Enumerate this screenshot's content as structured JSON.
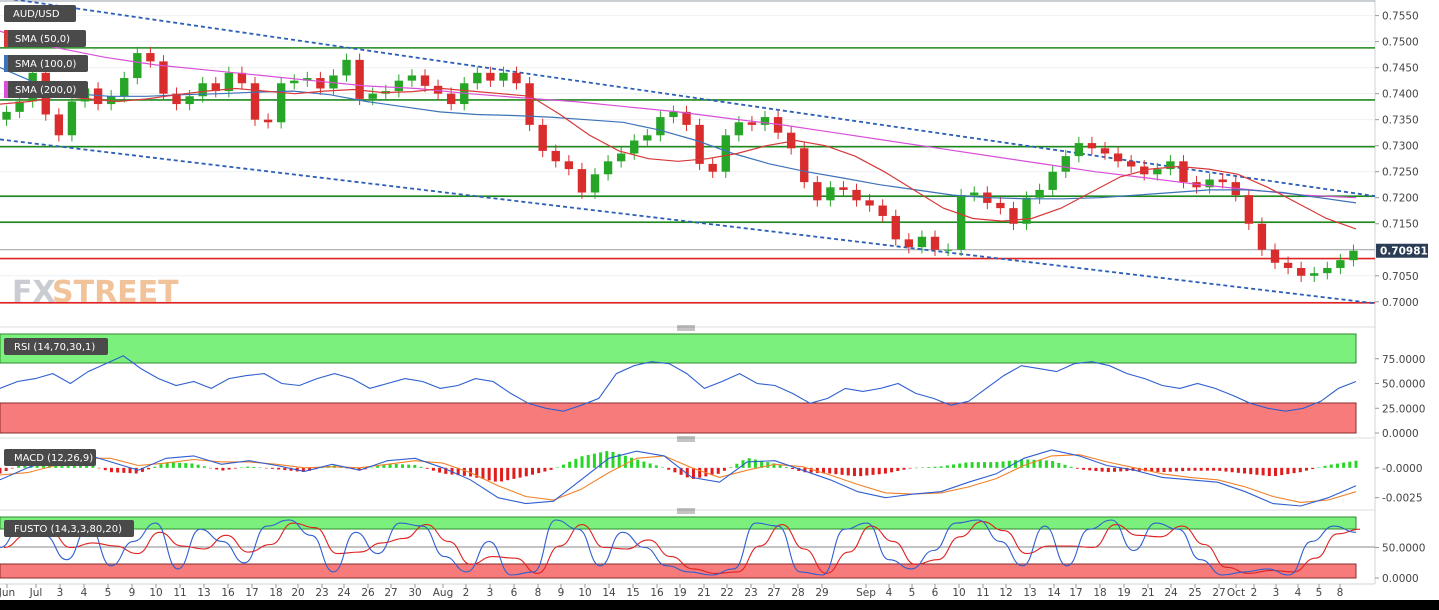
{
  "chart_data": {
    "type": "candlestick",
    "instrument": "AUD/USD",
    "current_price": "0.70981",
    "indicators": {
      "sma50": {
        "label": "SMA (50,0)",
        "color": "#d93838"
      },
      "sma100": {
        "label": "SMA (100,0)",
        "color": "#3d73b8"
      },
      "sma200": {
        "label": "SMA (200,0)",
        "color": "#d94fd9"
      }
    },
    "price_axis": {
      "range": [
        0.6965,
        0.758
      ],
      "ticks": [
        0.755,
        0.75,
        0.745,
        0.74,
        0.735,
        0.73,
        0.725,
        0.72,
        0.715,
        0.705,
        0.7
      ],
      "tick_labels": [
        "0.7550",
        "0.7500",
        "0.7450",
        "0.7400",
        "0.7350",
        "0.7300",
        "0.7250",
        "0.7200",
        "0.7150",
        "0.7050",
        "0.7000"
      ]
    },
    "horizontal_levels": {
      "green": [
        0.7488,
        0.7388,
        0.7298,
        0.7203,
        0.7153
      ],
      "red": [
        0.7083,
        0.6998
      ],
      "gray": [
        0.7578,
        0.71
      ]
    },
    "trendlines": [
      {
        "from": [
          0,
          0.7585
        ],
        "to": [
          1375,
          0.7203
        ]
      },
      {
        "from": [
          0,
          0.7312
        ],
        "to": [
          1375,
          0.6997
        ]
      }
    ],
    "closes": [
      0.7365,
      0.7385,
      0.744,
      0.736,
      0.732,
      0.7385,
      0.741,
      0.738,
      0.7395,
      0.743,
      0.7478,
      0.7462,
      0.74,
      0.738,
      0.7395,
      0.742,
      0.7405,
      0.744,
      0.742,
      0.735,
      0.7345,
      0.742,
      0.7425,
      0.743,
      0.741,
      0.7435,
      0.7465,
      0.739,
      0.74,
      0.7405,
      0.7425,
      0.7435,
      0.7415,
      0.74,
      0.738,
      0.742,
      0.744,
      0.7425,
      0.744,
      0.742,
      0.734,
      0.729,
      0.727,
      0.7255,
      0.721,
      0.7245,
      0.727,
      0.7285,
      0.731,
      0.732,
      0.7355,
      0.7365,
      0.734,
      0.7265,
      0.725,
      0.732,
      0.7345,
      0.734,
      0.7355,
      0.7325,
      0.7295,
      0.723,
      0.7195,
      0.722,
      0.7215,
      0.7195,
      0.7185,
      0.7165,
      0.712,
      0.7105,
      0.7125,
      0.71,
      0.71,
      0.7205,
      0.721,
      0.719,
      0.718,
      0.715,
      0.72,
      0.7215,
      0.725,
      0.728,
      0.7305,
      0.7295,
      0.7285,
      0.727,
      0.726,
      0.7245,
      0.7255,
      0.727,
      0.723,
      0.722,
      0.7235,
      0.723,
      0.7205,
      0.715,
      0.71,
      0.7075,
      0.7065,
      0.705,
      0.7055,
      0.7065,
      0.708,
      0.7098
    ],
    "sma50_values": [
      0.738,
      0.7385,
      0.7395,
      0.739,
      0.7385,
      0.739,
      0.7398,
      0.7405,
      0.741,
      0.7405,
      0.74,
      0.7405,
      0.7408,
      0.7402,
      0.7404,
      0.741,
      0.7405,
      0.74,
      0.7395,
      0.736,
      0.732,
      0.729,
      0.7275,
      0.727,
      0.7275,
      0.7285,
      0.73,
      0.731,
      0.73,
      0.728,
      0.725,
      0.7215,
      0.718,
      0.716,
      0.7155,
      0.716,
      0.718,
      0.721,
      0.724,
      0.7255,
      0.726,
      0.7255,
      0.7245,
      0.722,
      0.719,
      0.716,
      0.714
    ],
    "sma100_values": [
      0.745,
      0.742,
      0.74,
      0.7395,
      0.7395,
      0.7398,
      0.74,
      0.7403,
      0.7405,
      0.7398,
      0.7385,
      0.7375,
      0.7365,
      0.736,
      0.7358,
      0.7355,
      0.735,
      0.7345,
      0.733,
      0.731,
      0.7285,
      0.7265,
      0.725,
      0.7238,
      0.7225,
      0.7215,
      0.7205,
      0.72,
      0.7198,
      0.7198,
      0.72,
      0.7205,
      0.721,
      0.7215,
      0.7215,
      0.721,
      0.72,
      0.719
    ],
    "sma200_values": [
      0.752,
      0.749,
      0.747,
      0.7455,
      0.7445,
      0.7435,
      0.7425,
      0.7415,
      0.741,
      0.74,
      0.7392,
      0.7385,
      0.7375,
      0.7365,
      0.7352,
      0.734,
      0.7325,
      0.731,
      0.7295,
      0.728,
      0.7265,
      0.725,
      0.7238,
      0.7225,
      0.7215,
      0.7205,
      0.72
    ],
    "rsi": {
      "label": "RSI (14,70,30,1)",
      "levels": [
        70,
        30
      ],
      "ticks": [
        75,
        50,
        25,
        0
      ],
      "tick_labels": [
        "75.0000",
        "50.0000",
        "25.0000",
        "0.0000"
      ],
      "values": [
        45,
        52,
        55,
        60,
        50,
        62,
        70,
        78,
        65,
        55,
        48,
        52,
        45,
        55,
        58,
        60,
        50,
        48,
        55,
        60,
        55,
        45,
        50,
        55,
        52,
        45,
        48,
        55,
        52,
        40,
        30,
        25,
        22,
        28,
        35,
        60,
        68,
        72,
        70,
        60,
        45,
        52,
        60,
        50,
        48,
        40,
        30,
        35,
        45,
        42,
        45,
        50,
        40,
        35,
        28,
        32,
        45,
        58,
        68,
        65,
        62,
        70,
        72,
        68,
        60,
        55,
        48,
        45,
        50,
        45,
        38,
        30,
        25,
        22,
        25,
        32,
        45,
        52
      ]
    },
    "macd": {
      "label": "MACD (12,26,9)",
      "ticks": [
        0.0,
        -0.0025
      ],
      "tick_labels": [
        "-0.0000",
        "-0.0025"
      ],
      "range": [
        -0.0032,
        0.002
      ],
      "macd_line": [
        -0.001,
        0.0,
        0.0008,
        0.0012,
        0.0005,
        -0.0002,
        0.0008,
        0.001,
        0.0003,
        0.0006,
        0.0002,
        -0.0003,
        0.0003,
        -0.0002,
        0.0006,
        0.0008,
        0.0,
        -0.001,
        -0.0025,
        -0.003,
        -0.0028,
        -0.001,
        0.0008,
        0.0014,
        0.001,
        -0.0008,
        -0.0012,
        0.0005,
        0.0006,
        -0.0002,
        -0.001,
        -0.002,
        -0.0025,
        -0.0022,
        -0.002,
        -0.0012,
        -0.0005,
        0.0008,
        0.0015,
        0.001,
        0.0002,
        -0.0002,
        -0.0008,
        -0.001,
        -0.0012,
        -0.002,
        -0.003,
        -0.0032,
        -0.0025,
        -0.0015
      ],
      "signal_line": [
        -0.0006,
        -0.0004,
        0.0002,
        0.0008,
        0.0008,
        0.0002,
        0.0004,
        0.0007,
        0.0005,
        0.0005,
        0.0003,
        0.0,
        0.0001,
        0.0,
        0.0003,
        0.0006,
        0.0004,
        -0.0004,
        -0.0015,
        -0.0024,
        -0.0027,
        -0.0018,
        -0.0004,
        0.0008,
        0.001,
        0.0,
        -0.0008,
        -0.0002,
        0.0003,
        0.0001,
        -0.0006,
        -0.0014,
        -0.0021,
        -0.0022,
        -0.0021,
        -0.0016,
        -0.0009,
        0.0002,
        0.001,
        0.0011,
        0.0005,
        0.0,
        -0.0005,
        -0.0008,
        -0.001,
        -0.0016,
        -0.0024,
        -0.0029,
        -0.0027,
        -0.002
      ]
    },
    "fusto": {
      "label": "FUSTO (14,3,3,80,20)",
      "levels": [
        80,
        20
      ],
      "ticks": [
        50,
        0
      ],
      "tick_labels": [
        "50.0000",
        "0.0000"
      ],
      "k_values": [
        50,
        90,
        70,
        30,
        85,
        20,
        60,
        90,
        15,
        80,
        60,
        25,
        85,
        95,
        70,
        10,
        75,
        40,
        90,
        85,
        35,
        10,
        60,
        5,
        10,
        95,
        80,
        20,
        75,
        50,
        20,
        10,
        5,
        15,
        90,
        85,
        10,
        5,
        80,
        90,
        30,
        15,
        45,
        90,
        95,
        60,
        20,
        85,
        20,
        80,
        95,
        45,
        90,
        80,
        30,
        5,
        10,
        15,
        5,
        60,
        85,
        75
      ]
    },
    "x_axis": {
      "labels": [
        {
          "text": "Jun",
          "x": 7
        },
        {
          "text": "Jul",
          "x": 36
        },
        {
          "text": "3",
          "x": 60
        },
        {
          "text": "4",
          "x": 84
        },
        {
          "text": "5",
          "x": 108
        },
        {
          "text": "9",
          "x": 132
        },
        {
          "text": "10",
          "x": 156
        },
        {
          "text": "11",
          "x": 180
        },
        {
          "text": "13",
          "x": 204
        },
        {
          "text": "16",
          "x": 228
        },
        {
          "text": "17",
          "x": 252
        },
        {
          "text": "18",
          "x": 276
        },
        {
          "text": "20",
          "x": 298
        },
        {
          "text": "23",
          "x": 322
        },
        {
          "text": "24",
          "x": 344
        },
        {
          "text": "26",
          "x": 368
        },
        {
          "text": "27",
          "x": 391
        },
        {
          "text": "30",
          "x": 415
        },
        {
          "text": "Aug",
          "x": 443
        },
        {
          "text": "2",
          "x": 466
        },
        {
          "text": "3",
          "x": 490
        },
        {
          "text": "6",
          "x": 514
        },
        {
          "text": "8",
          "x": 538
        },
        {
          "text": "9",
          "x": 561
        },
        {
          "text": "10",
          "x": 585
        },
        {
          "text": "14",
          "x": 609
        },
        {
          "text": "15",
          "x": 633
        },
        {
          "text": "16",
          "x": 657
        },
        {
          "text": "19",
          "x": 680
        },
        {
          "text": "21",
          "x": 704
        },
        {
          "text": "22",
          "x": 727
        },
        {
          "text": "23",
          "x": 751
        },
        {
          "text": "27",
          "x": 774
        },
        {
          "text": "28",
          "x": 798
        },
        {
          "text": "29",
          "x": 822
        },
        {
          "text": "Sep",
          "x": 866
        },
        {
          "text": "4",
          "x": 889
        },
        {
          "text": "5",
          "x": 912
        },
        {
          "text": "6",
          "x": 935
        },
        {
          "text": "10",
          "x": 959
        },
        {
          "text": "11",
          "x": 983
        },
        {
          "text": "12",
          "x": 1006
        },
        {
          "text": "13",
          "x": 1030
        },
        {
          "text": "14",
          "x": 1054
        },
        {
          "text": "17",
          "x": 1076
        },
        {
          "text": "18",
          "x": 1100
        },
        {
          "text": "19",
          "x": 1124
        },
        {
          "text": "21",
          "x": 1148
        },
        {
          "text": "24",
          "x": 1171
        },
        {
          "text": "25",
          "x": 1195
        },
        {
          "text": "27",
          "x": 1219
        },
        {
          "text": "Oct",
          "x": 1236
        },
        {
          "text": "2",
          "x": 1254
        },
        {
          "text": "3",
          "x": 1276
        },
        {
          "text": "4",
          "x": 1298
        },
        {
          "text": "5",
          "x": 1319
        },
        {
          "text": "8",
          "x": 1340
        }
      ]
    }
  }
}
